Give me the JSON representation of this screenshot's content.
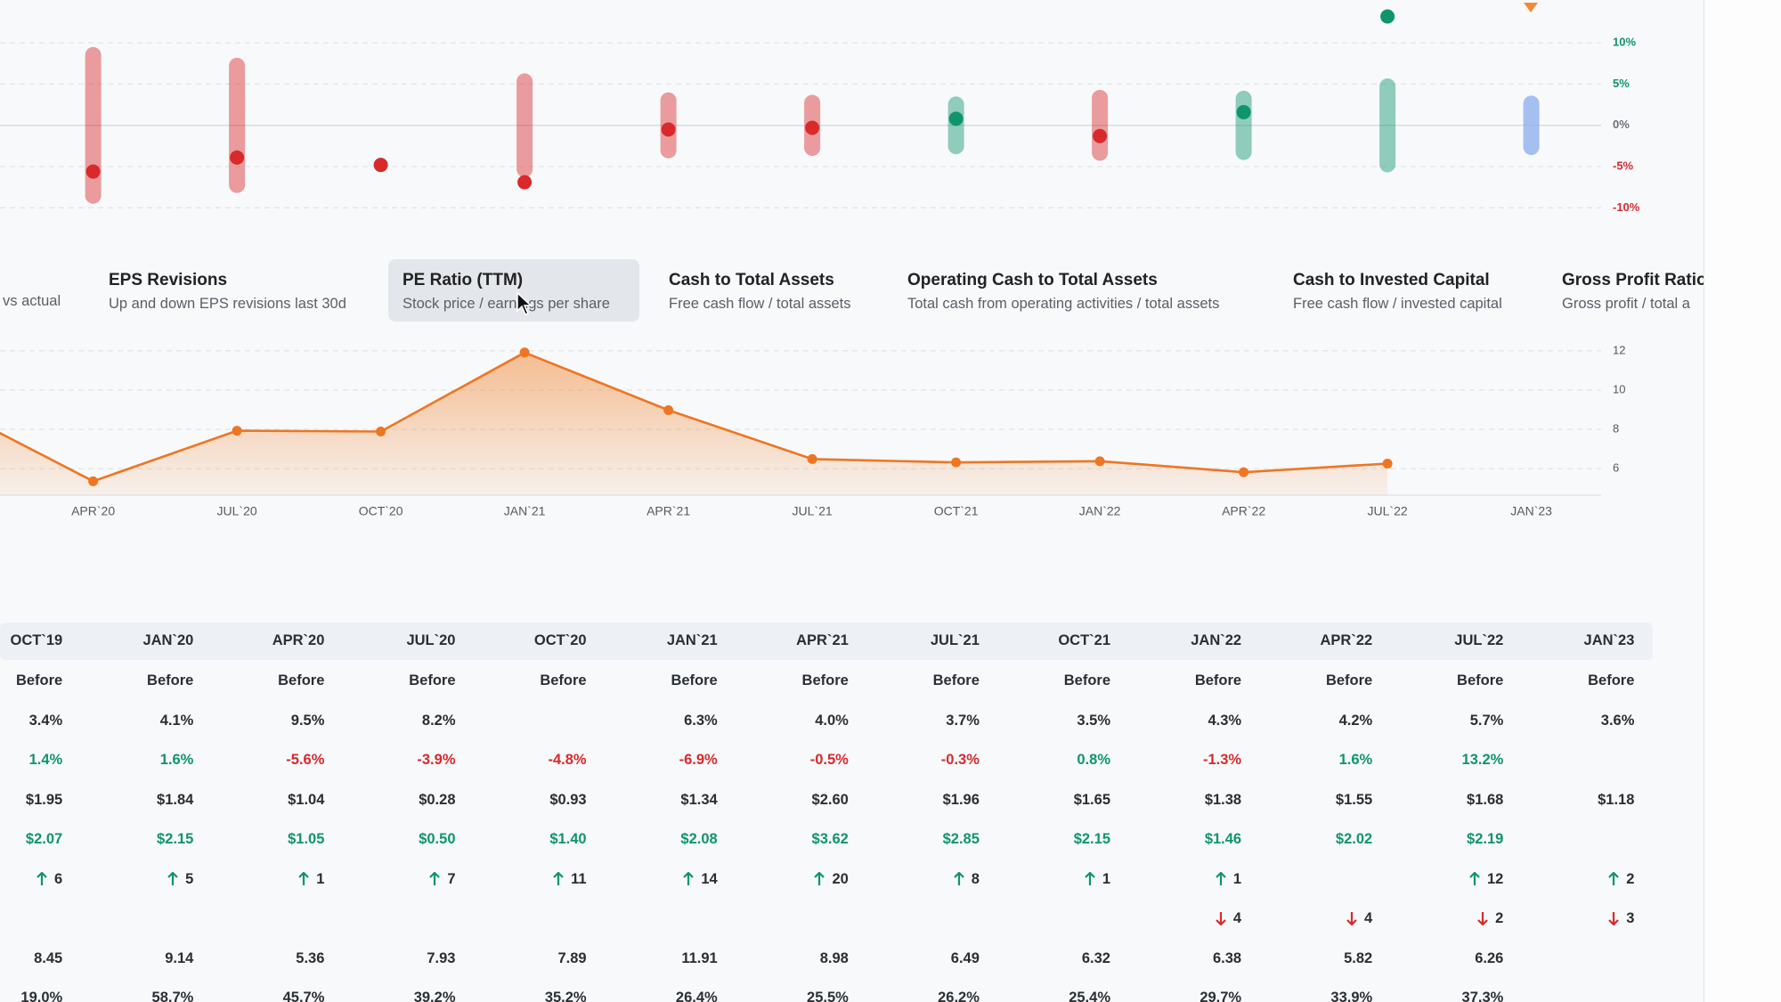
{
  "chart_data": [
    {
      "type": "range",
      "values": [
        null,
        -5.6,
        -3.9,
        -4.8,
        -6.9,
        -0.5,
        -0.3,
        0.8,
        -1.3,
        1.6,
        13.2,
        null
      ],
      "ranges": [
        null,
        9.5,
        8.2,
        null,
        6.3,
        4.0,
        3.7,
        3.5,
        4.3,
        4.2,
        5.7,
        3.6
      ],
      "ylim": [
        -11.8,
        15.2
      ],
      "yticks": [
        {
          "value": 10,
          "label": "10%"
        },
        {
          "value": 5,
          "label": "5%"
        },
        {
          "value": 0,
          "label": "0%"
        },
        {
          "value": -5,
          "label": "-5%"
        },
        {
          "value": -10,
          "label": "-10%"
        }
      ],
      "colors": {
        "positive": "#10946c",
        "negative": "#d9292b",
        "pending": "#8fb0ee",
        "neutral": "#6b7076"
      },
      "grid": true
    },
    {
      "type": "area",
      "categories": [
        null,
        "APR`20",
        "JUL`20",
        "OCT`20",
        "JAN`21",
        "APR`21",
        "JUL`21",
        "OCT`21",
        "JAN`22",
        "APR`22",
        "JUL`22",
        "JAN`23"
      ],
      "values": [
        9.14,
        5.36,
        7.93,
        7.89,
        11.91,
        8.98,
        6.49,
        6.32,
        6.38,
        5.82,
        6.26,
        null
      ],
      "ylim": [
        4.65,
        12.4
      ],
      "yticks": [
        12,
        10,
        8,
        6
      ],
      "color": "#ee7623",
      "grid": true
    }
  ],
  "tabs": {
    "active": 2,
    "items": [
      {
        "subtitle": "vs actual"
      },
      {
        "title": "EPS Revisions",
        "subtitle": "Up and down EPS revisions last 30d"
      },
      {
        "title": "PE Ratio (TTM)",
        "subtitle": "Stock price / earnings per share"
      },
      {
        "title": "Cash to Total Assets",
        "subtitle": "Free cash flow / total assets"
      },
      {
        "title": "Operating Cash to Total Assets",
        "subtitle": "Total cash from operating activities / total assets"
      },
      {
        "title": "Cash to Invested Capital",
        "subtitle": "Free cash flow / invested capital"
      },
      {
        "title": "Gross Profit Ratio",
        "subtitle": "Gross profit / total a"
      }
    ]
  },
  "table": {
    "columns": [
      "OCT`19",
      "JAN`20",
      "APR`20",
      "JUL`20",
      "OCT`20",
      "JAN`21",
      "APR`21",
      "JUL`21",
      "OCT`21",
      "JAN`22",
      "APR`22",
      "JUL`22",
      "JAN`23"
    ],
    "rows": [
      {
        "cells": [
          "Before",
          "Before",
          "Before",
          "Before",
          "Before",
          "Before",
          "Before",
          "Before",
          "Before",
          "Before",
          "Before",
          "Before",
          "Before"
        ]
      },
      {
        "cells": [
          "3.4%",
          "4.1%",
          "9.5%",
          "8.2%",
          null,
          "6.3%",
          "4.0%",
          "3.7%",
          "3.5%",
          "4.3%",
          "4.2%",
          "5.7%",
          "3.6%"
        ]
      },
      {
        "cells": [
          "1.4%",
          "1.6%",
          "-5.6%",
          "-3.9%",
          "-4.8%",
          "-6.9%",
          "-0.5%",
          "-0.3%",
          "0.8%",
          "-1.3%",
          "1.6%",
          "13.2%",
          null
        ],
        "signed": true
      },
      {
        "cells": [
          "$1.95",
          "$1.84",
          "$1.04",
          "$0.28",
          "$0.93",
          "$1.34",
          "$2.60",
          "$1.96",
          "$1.65",
          "$1.38",
          "$1.55",
          "$1.68",
          "$1.18"
        ]
      },
      {
        "cells": [
          "$2.07",
          "$2.15",
          "$1.05",
          "$0.50",
          "$1.40",
          "$2.08",
          "$3.62",
          "$2.85",
          "$2.15",
          "$1.46",
          "$2.02",
          "$2.19",
          null
        ],
        "color": "#10946c"
      },
      {
        "cells": [
          "6",
          "5",
          "1",
          "7",
          "11",
          "14",
          "20",
          "8",
          "1",
          "1",
          null,
          "12",
          "2"
        ],
        "arrow": "up"
      },
      {
        "cells": [
          null,
          null,
          null,
          null,
          null,
          null,
          null,
          null,
          null,
          "4",
          "4",
          "2",
          "3"
        ],
        "arrow": "down"
      },
      {
        "cells": [
          "8.45",
          "9.14",
          "5.36",
          "7.93",
          "7.89",
          "11.91",
          "8.98",
          "6.49",
          "6.32",
          "6.38",
          "5.82",
          "6.26",
          null
        ]
      },
      {
        "cells": [
          "19.0%",
          "58.7%",
          "45.7%",
          "39.2%",
          "35.2%",
          "26.4%",
          "25.5%",
          "26.2%",
          "25.4%",
          "29.7%",
          "33.9%",
          "37.3%",
          null
        ]
      }
    ]
  }
}
